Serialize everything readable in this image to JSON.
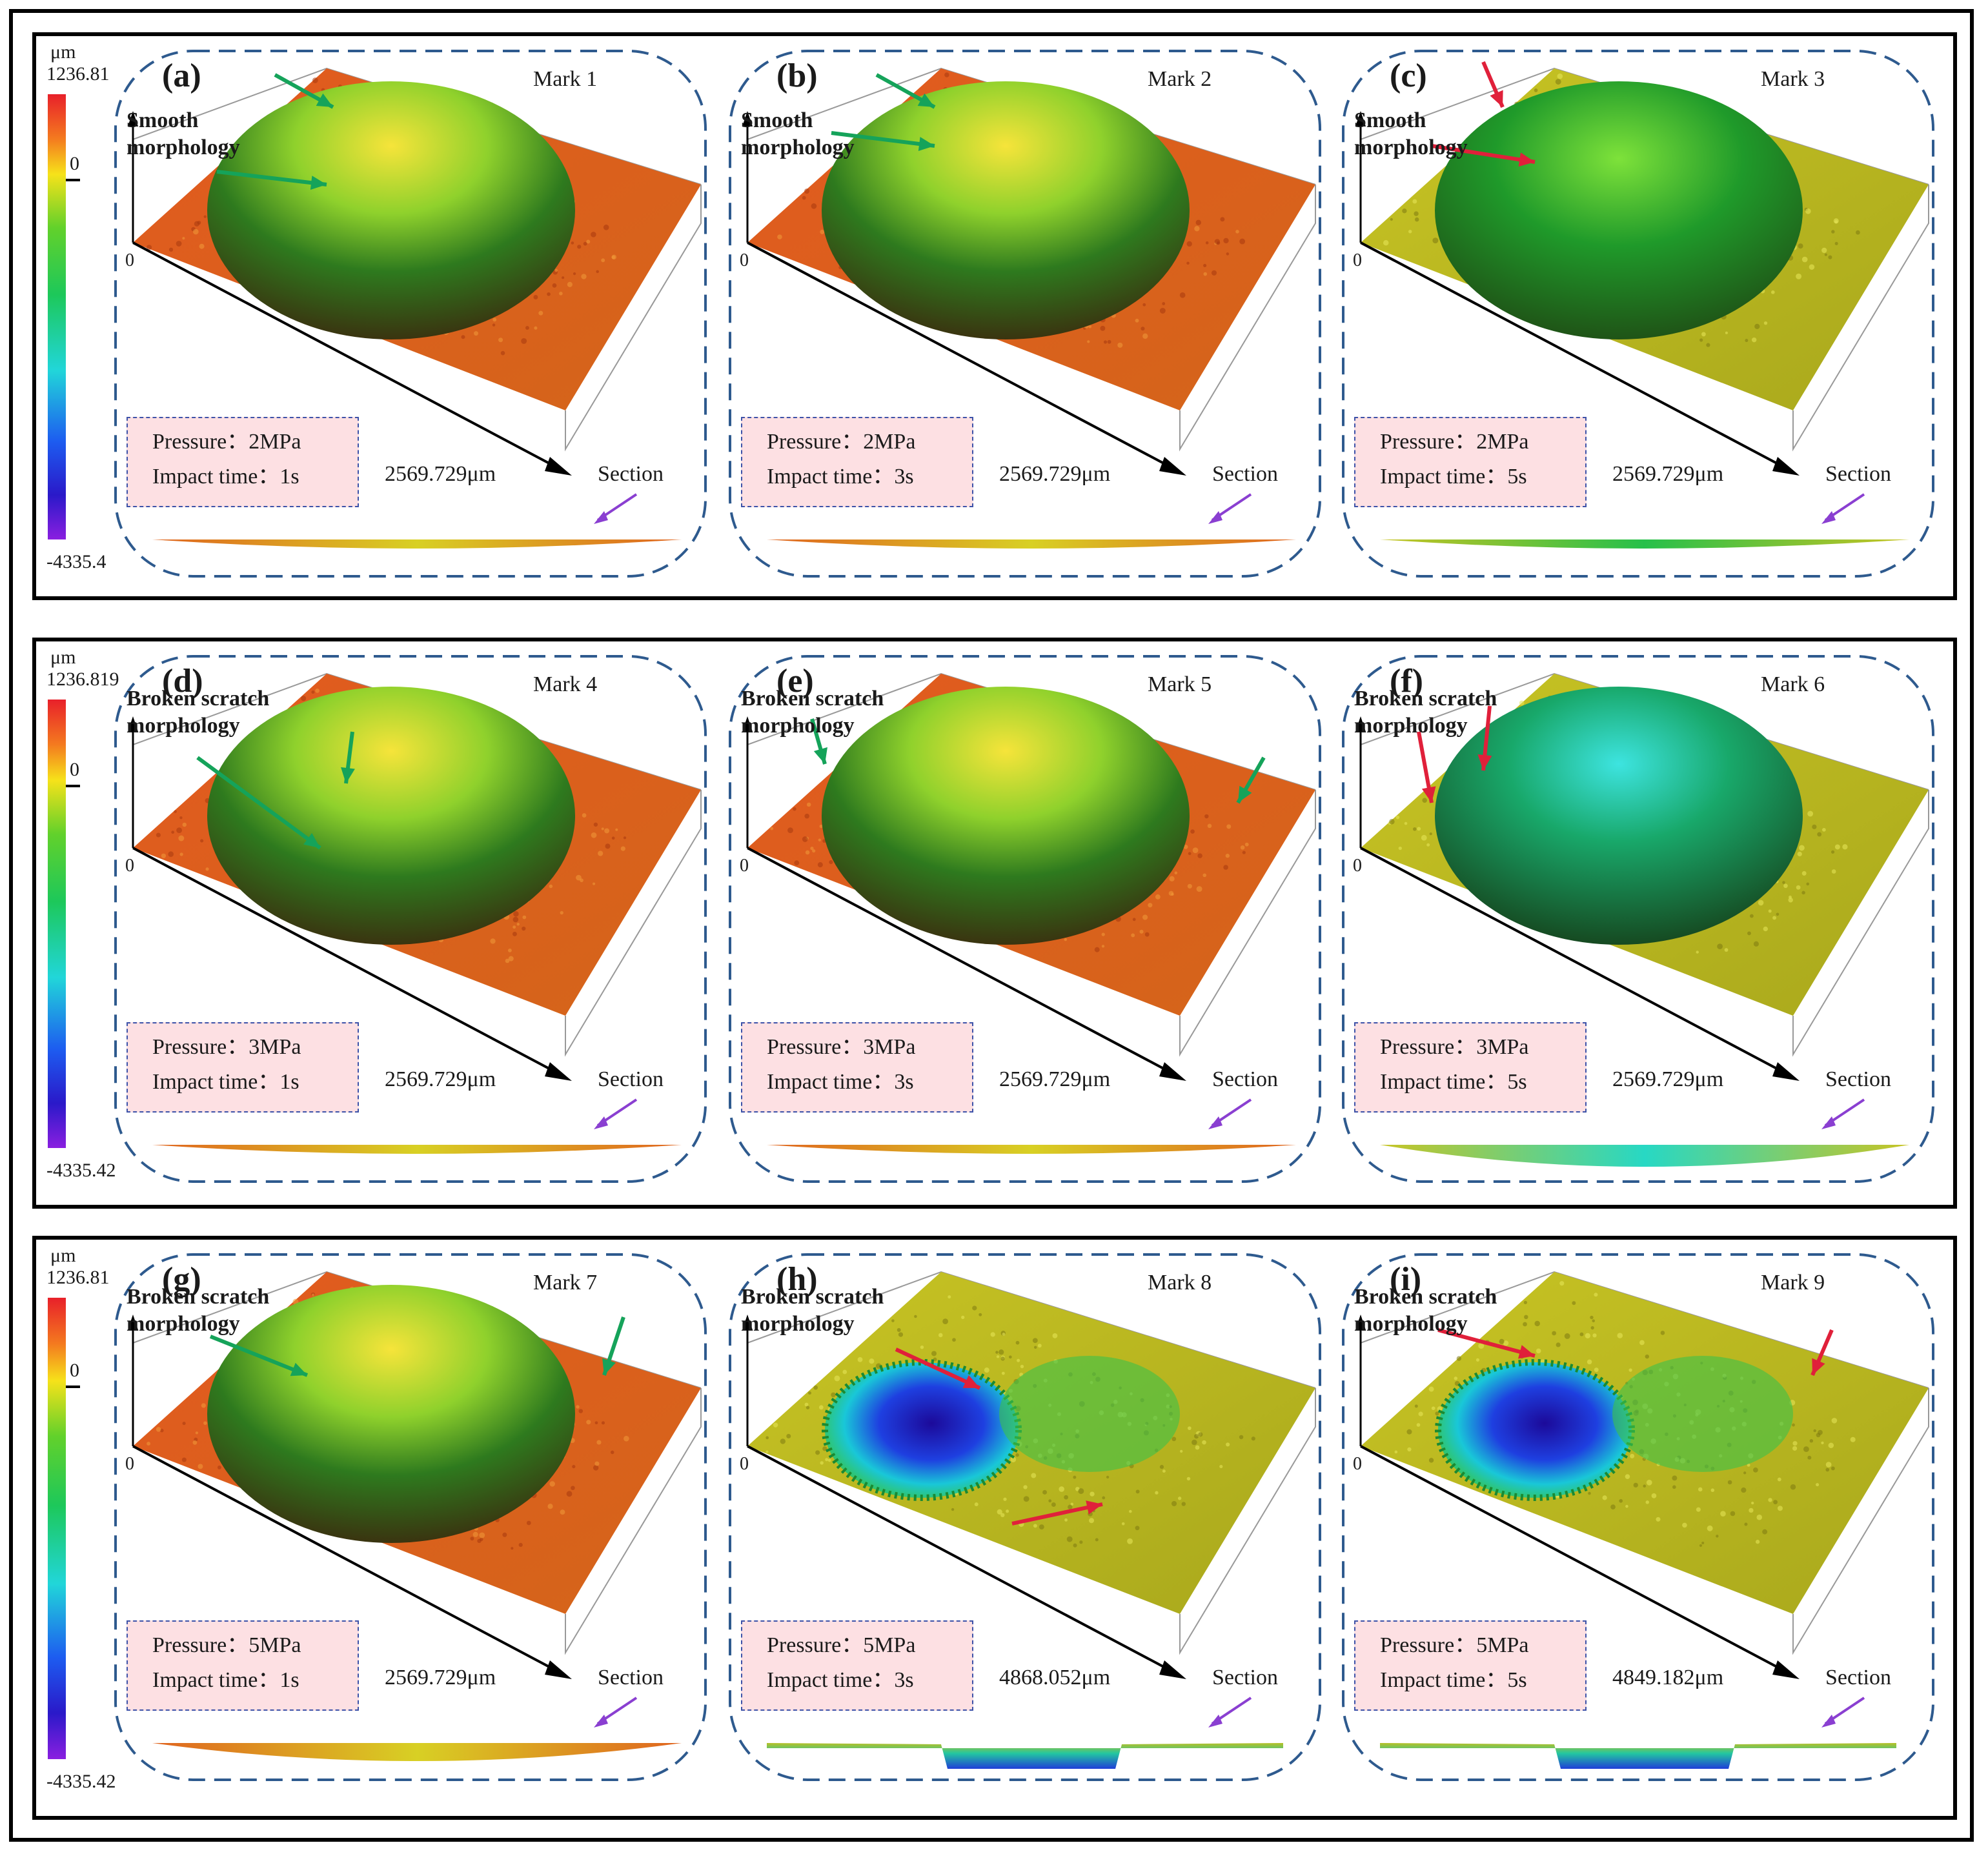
{
  "colors": {
    "frame": "#000000",
    "panel_border": "#2e5a8e",
    "info_bg": "#fde0e3",
    "info_border": "#3d52a8",
    "arrow_green": "#15a35a",
    "arrow_red": "#e0203a",
    "arrow_purple": "#8a3fd1"
  },
  "rows": [
    {
      "legend": {
        "unit": "μm",
        "max": "1236.81",
        "zero": "0",
        "min": "-4335.4"
      },
      "panels": [
        {
          "label": "(a)",
          "mark": "Mark 1",
          "morph_line1": "Smooth",
          "morph_line2": "morphology",
          "pressure": "Pressure：2MPa",
          "impact": "Impact time：1s",
          "axis_length": "2569.729μm",
          "axis_zero": "0",
          "section": "Section",
          "surface": "orange",
          "arrow": "green",
          "crater": "cap"
        },
        {
          "label": "(b)",
          "mark": "Mark 2",
          "morph_line1": "Smooth",
          "morph_line2": "morphology",
          "pressure": "Pressure：2MPa",
          "impact": "Impact time：3s",
          "axis_length": "2569.729μm",
          "axis_zero": "0",
          "section": "Section",
          "surface": "orange",
          "arrow": "green",
          "crater": "cap"
        },
        {
          "label": "(c)",
          "mark": "Mark 3",
          "morph_line1": "Smooth",
          "morph_line2": "morphology",
          "pressure": "Pressure：2MPa",
          "impact": "Impact time：5s",
          "axis_length": "2569.729μm",
          "axis_zero": "0",
          "section": "Section",
          "surface": "yellow",
          "arrow": "red",
          "crater": "cap"
        }
      ]
    },
    {
      "legend": {
        "unit": "μm",
        "max": "1236.819",
        "zero": "0",
        "min": "-4335.42"
      },
      "panels": [
        {
          "label": "(d)",
          "mark": "Mark 4",
          "morph_line1": "Broken scratch",
          "morph_line2": "morphology",
          "pressure": "Pressure：3MPa",
          "impact": "Impact time：1s",
          "axis_length": "2569.729μm",
          "axis_zero": "0",
          "section": "Section",
          "surface": "orange",
          "arrow": "green",
          "crater": "cap"
        },
        {
          "label": "(e)",
          "mark": "Mark 5",
          "morph_line1": "Broken scratch",
          "morph_line2": "morphology",
          "pressure": "Pressure：3MPa",
          "impact": "Impact time：3s",
          "axis_length": "2569.729μm",
          "axis_zero": "0",
          "section": "Section",
          "surface": "orange",
          "arrow": "green",
          "crater": "cap"
        },
        {
          "label": "(f)",
          "mark": "Mark 6",
          "morph_line1": "Broken scratch",
          "morph_line2": "morphology",
          "pressure": "Pressure：3MPa",
          "impact": "Impact time：5s",
          "axis_length": "2569.729μm",
          "axis_zero": "0",
          "section": "Section",
          "surface": "yellow",
          "arrow": "red",
          "crater": "cyan"
        }
      ]
    },
    {
      "legend": {
        "unit": "μm",
        "max": "1236.81",
        "zero": "0",
        "min": "-4335.42"
      },
      "panels": [
        {
          "label": "(g)",
          "mark": "Mark 7",
          "morph_line1": "Broken scratch",
          "morph_line2": "morphology",
          "pressure": "Pressure：5MPa",
          "impact": "Impact time：1s",
          "axis_length": "2569.729μm",
          "axis_zero": "0",
          "section": "Section",
          "surface": "orange",
          "arrow": "green",
          "crater": "cap"
        },
        {
          "label": "(h)",
          "mark": "Mark 8",
          "morph_line1": "Broken scratch",
          "morph_line2": "morphology",
          "pressure": "Pressure：5MPa",
          "impact": "Impact time：3s",
          "axis_length": "4868.052μm",
          "axis_zero": "0",
          "section": "Section",
          "surface": "yellow",
          "arrow": "red",
          "crater": "deep"
        },
        {
          "label": "(i)",
          "mark": "Mark 9",
          "morph_line1": "Broken scratch",
          "morph_line2": "morphology",
          "pressure": "Pressure：5MPa",
          "impact": "Impact time：5s",
          "axis_length": "4849.182μm",
          "axis_zero": "0",
          "section": "Section",
          "surface": "yellow",
          "arrow": "red",
          "crater": "deep"
        }
      ]
    }
  ]
}
